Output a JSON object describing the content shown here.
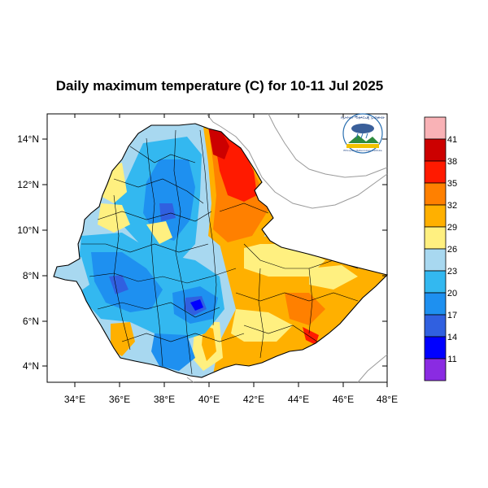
{
  "title": "Daily maximum temperature (C) for 10-11 Jul 2025",
  "map": {
    "x_ticks": [
      "34°E",
      "36°E",
      "38°E",
      "40°E",
      "42°E",
      "44°E",
      "46°E",
      "48°E"
    ],
    "y_ticks": [
      "14°N",
      "12°N",
      "10°N",
      "8°N",
      "6°N",
      "4°N"
    ],
    "lon_range": [
      33,
      48
    ],
    "lat_range": [
      3.3,
      15
    ]
  },
  "colorbar": {
    "labels": [
      "41",
      "38",
      "35",
      "32",
      "29",
      "26",
      "23",
      "20",
      "17",
      "14",
      "11"
    ],
    "colors": [
      "#f9b2b6",
      "#cc0000",
      "#ff1a00",
      "#ff8000",
      "#ffb000",
      "#fff080",
      "#a8d8f0",
      "#33b8f0",
      "#1e90f0",
      "#3060e0",
      "#0000ff",
      "#8a2be2"
    ]
  },
  "logo": {
    "text_top": "የኢትዮጵያ ሚቲዎሮሎጂ ኢንስቲትዩት",
    "text_bottom": "Ethiopian Meteorology Institute"
  }
}
